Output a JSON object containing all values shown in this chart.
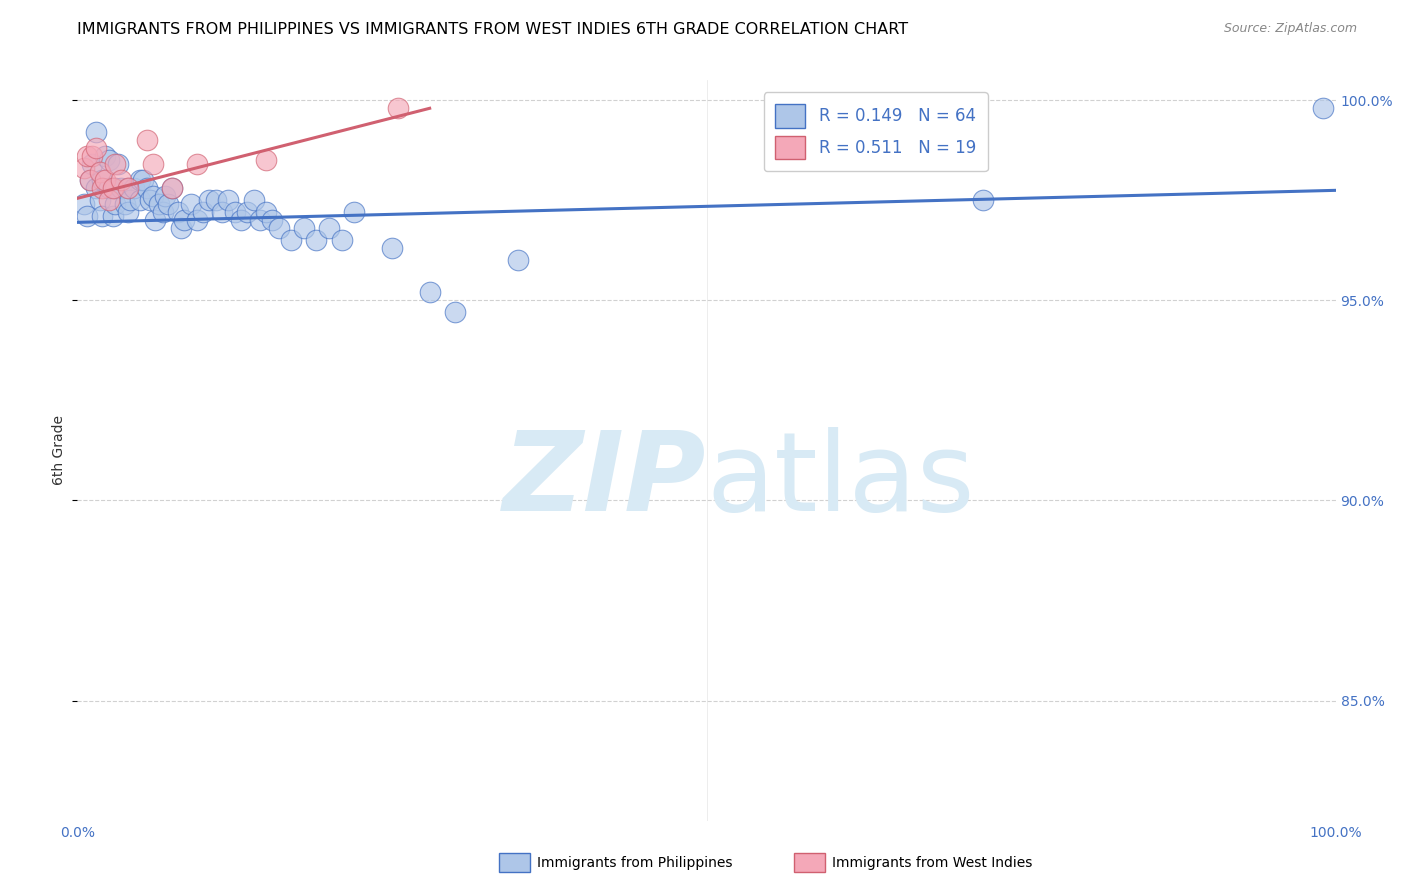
{
  "title": "IMMIGRANTS FROM PHILIPPINES VS IMMIGRANTS FROM WEST INDIES 6TH GRADE CORRELATION CHART",
  "source": "Source: ZipAtlas.com",
  "ylabel": "6th Grade",
  "xlim": [
    0.0,
    1.0
  ],
  "ylim": [
    0.82,
    1.005
  ],
  "color_blue": "#aec6e8",
  "color_pink": "#f4a8b8",
  "color_blue_line": "#4472c4",
  "color_pink_line": "#d06070",
  "color_text_blue": "#4472c4",
  "watermark_color": "#d8eaf5",
  "legend_label1": "Immigrants from Philippines",
  "legend_label2": "Immigrants from West Indies",
  "philippines_x": [
    0.005,
    0.008,
    0.01,
    0.012,
    0.015,
    0.015,
    0.018,
    0.02,
    0.02,
    0.022,
    0.025,
    0.025,
    0.028,
    0.03,
    0.03,
    0.032,
    0.035,
    0.038,
    0.04,
    0.04,
    0.042,
    0.045,
    0.05,
    0.05,
    0.052,
    0.055,
    0.058,
    0.06,
    0.062,
    0.065,
    0.068,
    0.07,
    0.072,
    0.075,
    0.08,
    0.082,
    0.085,
    0.09,
    0.095,
    0.1,
    0.105,
    0.11,
    0.115,
    0.12,
    0.125,
    0.13,
    0.135,
    0.14,
    0.145,
    0.15,
    0.155,
    0.16,
    0.17,
    0.18,
    0.19,
    0.2,
    0.21,
    0.22,
    0.25,
    0.28,
    0.3,
    0.35,
    0.72,
    0.99
  ],
  "philippines_y": [
    0.974,
    0.971,
    0.98,
    0.984,
    0.978,
    0.992,
    0.975,
    0.971,
    0.98,
    0.986,
    0.978,
    0.985,
    0.971,
    0.974,
    0.978,
    0.984,
    0.978,
    0.974,
    0.978,
    0.972,
    0.975,
    0.978,
    0.98,
    0.975,
    0.98,
    0.978,
    0.975,
    0.976,
    0.97,
    0.974,
    0.972,
    0.976,
    0.974,
    0.978,
    0.972,
    0.968,
    0.97,
    0.974,
    0.97,
    0.972,
    0.975,
    0.975,
    0.972,
    0.975,
    0.972,
    0.97,
    0.972,
    0.975,
    0.97,
    0.972,
    0.97,
    0.968,
    0.965,
    0.968,
    0.965,
    0.968,
    0.965,
    0.972,
    0.963,
    0.952,
    0.947,
    0.96,
    0.975,
    0.998
  ],
  "westindies_x": [
    0.005,
    0.008,
    0.01,
    0.012,
    0.015,
    0.018,
    0.02,
    0.022,
    0.025,
    0.028,
    0.03,
    0.035,
    0.04,
    0.055,
    0.06,
    0.075,
    0.095,
    0.15,
    0.255
  ],
  "westindies_y": [
    0.983,
    0.986,
    0.98,
    0.986,
    0.988,
    0.982,
    0.978,
    0.98,
    0.975,
    0.978,
    0.984,
    0.98,
    0.978,
    0.99,
    0.984,
    0.978,
    0.984,
    0.985,
    0.998
  ],
  "blue_trendline_x": [
    0.0,
    1.0
  ],
  "blue_trendline_y": [
    0.9695,
    0.9775
  ],
  "pink_trendline_x": [
    0.0,
    0.28
  ],
  "pink_trendline_y": [
    0.9755,
    0.998
  ]
}
